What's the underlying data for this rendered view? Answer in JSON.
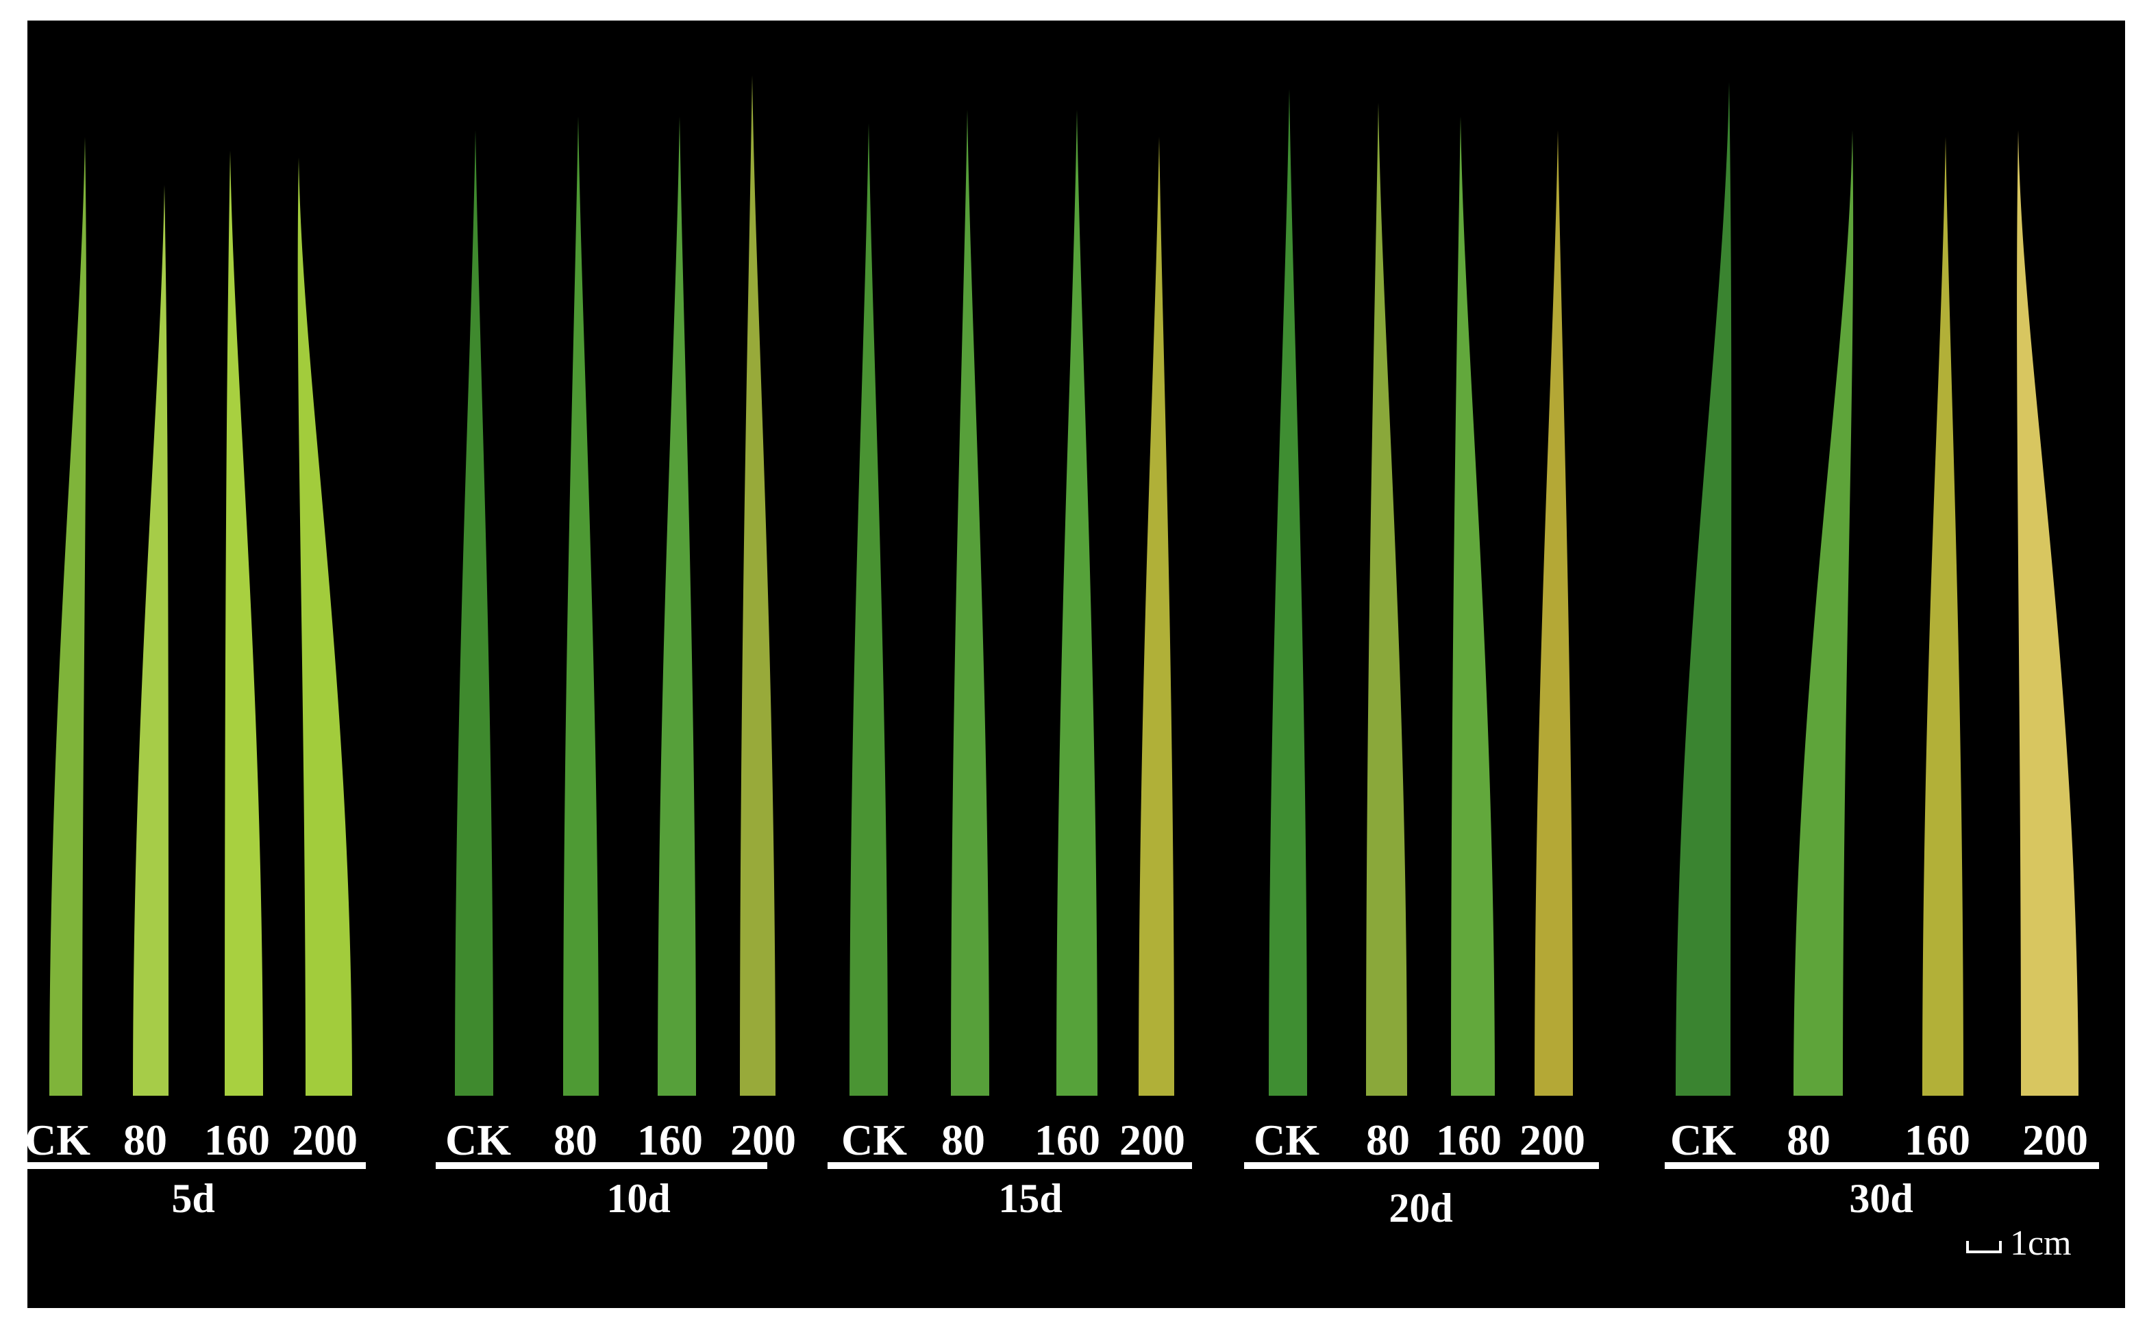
{
  "groups": [
    {
      "labels": [
        "CK",
        "80",
        "160",
        "200"
      ],
      "day": "5d"
    },
    {
      "labels": [
        "CK",
        "80",
        "160",
        "200"
      ],
      "day": "10d"
    },
    {
      "labels": [
        "CK",
        "80",
        "160",
        "200"
      ],
      "day": "15d"
    },
    {
      "labels": [
        "CK",
        "80",
        "160",
        "200"
      ],
      "day": "20d"
    },
    {
      "labels": [
        "CK",
        "80",
        "160",
        "200"
      ],
      "day": "30d"
    }
  ],
  "scale_bar": "1cm"
}
